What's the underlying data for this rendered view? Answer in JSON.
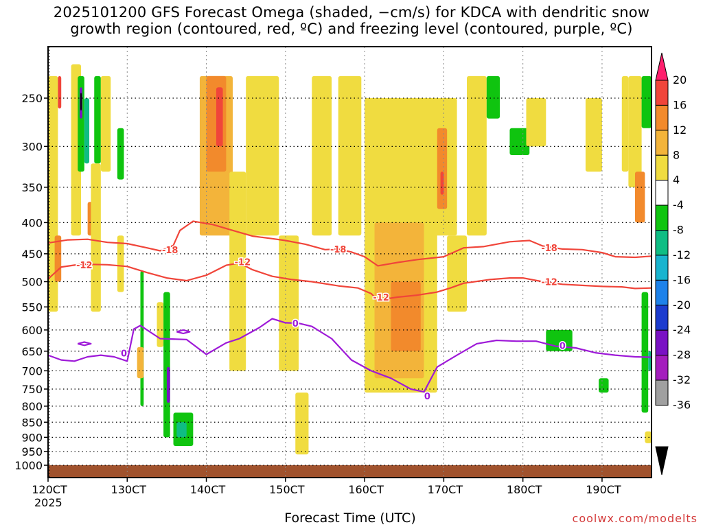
{
  "title": {
    "line1": "2025101200 GFS Forecast Omega (shaded, −cm/s) for KDCA with dendritic snow",
    "line2": "growth region (contoured, red, ºC) and freezing level (contoured, purple, ºC)"
  },
  "xlabel": "Forecast Time (UTC)",
  "watermark": "coolwx.com/modelts",
  "chart_data": {
    "type": "heatmap",
    "title": "2025101200 GFS Forecast Omega (shaded, −cm/s) for KDCA with dendritic snow growth region (contoured, red, ºC) and freezing level (contoured, purple, ºC)",
    "xlabel": "Forecast Time (UTC)",
    "ylabel": "",
    "x_unit_note": "hours since 12 Oct 2025 00 UTC",
    "xlim": [
      0,
      183
    ],
    "ylim": [
      1000,
      200
    ],
    "x_ticks": [
      {
        "x": 0,
        "label": "120CT",
        "sub": "2025"
      },
      {
        "x": 24,
        "label": "130CT"
      },
      {
        "x": 48,
        "label": "140CT"
      },
      {
        "x": 72,
        "label": "150CT"
      },
      {
        "x": 96,
        "label": "160CT"
      },
      {
        "x": 120,
        "label": "170CT"
      },
      {
        "x": 144,
        "label": "180CT"
      },
      {
        "x": 168,
        "label": "190CT"
      }
    ],
    "y_ticks": [
      250,
      300,
      350,
      400,
      450,
      500,
      550,
      600,
      650,
      700,
      750,
      800,
      850,
      900,
      950,
      1000
    ],
    "colorbar": {
      "labels": [
        "20",
        "16",
        "12",
        "8",
        "4",
        "-4",
        "-8",
        "-12",
        "-16",
        "-20",
        "-24",
        "-28",
        "-32",
        "-36"
      ],
      "colors": [
        "#ff1f6d",
        "#f0453a",
        "#f28a2c",
        "#f3b43a",
        "#f0dc40",
        "#ffffff",
        "#0fc40f",
        "#0fbd84",
        "#19b4cf",
        "#1e82ea",
        "#1c3ccf",
        "#7a12c4",
        "#a41ebd",
        "#a0a0a0",
        "#000000"
      ]
    },
    "ground": {
      "color": "#a0522d"
    },
    "series": [
      {
        "name": "-18",
        "color": "#f0453a",
        "points": [
          [
            0,
            432
          ],
          [
            6,
            427
          ],
          [
            12,
            426
          ],
          [
            18,
            431
          ],
          [
            24,
            433
          ],
          [
            30,
            440
          ],
          [
            34,
            445
          ],
          [
            38,
            436
          ],
          [
            40,
            412
          ],
          [
            44,
            398
          ],
          [
            50,
            403
          ],
          [
            56,
            412
          ],
          [
            62,
            421
          ],
          [
            68,
            425
          ],
          [
            72,
            428
          ],
          [
            78,
            434
          ],
          [
            84,
            443
          ],
          [
            88,
            442
          ],
          [
            92,
            447
          ],
          [
            96,
            455
          ],
          [
            100,
            471
          ],
          [
            106,
            465
          ],
          [
            112,
            460
          ],
          [
            120,
            455
          ],
          [
            126,
            440
          ],
          [
            132,
            438
          ],
          [
            140,
            430
          ],
          [
            146,
            428
          ],
          [
            150,
            437
          ],
          [
            156,
            442
          ],
          [
            162,
            443
          ],
          [
            168,
            448
          ],
          [
            172,
            455
          ],
          [
            178,
            456
          ],
          [
            183,
            454
          ]
        ],
        "labels": [
          [
            37,
            443
          ],
          [
            88,
            442
          ],
          [
            152,
            440
          ]
        ]
      },
      {
        "name": "-12",
        "color": "#f0453a",
        "points": [
          [
            0,
            495
          ],
          [
            4,
            473
          ],
          [
            10,
            468
          ],
          [
            18,
            469
          ],
          [
            24,
            472
          ],
          [
            30,
            483
          ],
          [
            36,
            493
          ],
          [
            42,
            498
          ],
          [
            48,
            488
          ],
          [
            54,
            470
          ],
          [
            58,
            466
          ],
          [
            62,
            478
          ],
          [
            68,
            490
          ],
          [
            74,
            496
          ],
          [
            80,
            500
          ],
          [
            88,
            508
          ],
          [
            94,
            512
          ],
          [
            98,
            523
          ],
          [
            100,
            536
          ],
          [
            106,
            530
          ],
          [
            112,
            526
          ],
          [
            118,
            520
          ],
          [
            122,
            512
          ],
          [
            126,
            503
          ],
          [
            134,
            496
          ],
          [
            140,
            493
          ],
          [
            144,
            493
          ],
          [
            150,
            500
          ],
          [
            156,
            505
          ],
          [
            162,
            507
          ],
          [
            168,
            509
          ],
          [
            174,
            510
          ],
          [
            178,
            513
          ],
          [
            183,
            512
          ]
        ],
        "labels": [
          [
            11,
            469
          ],
          [
            59,
            464
          ],
          [
            101,
            530
          ],
          [
            152,
            500
          ]
        ]
      },
      {
        "name": "0",
        "color": "#9e1ad8",
        "points": [
          [
            0,
            660
          ],
          [
            4,
            672
          ],
          [
            8,
            675
          ],
          [
            12,
            664
          ],
          [
            16,
            660
          ],
          [
            20,
            664
          ],
          [
            24,
            675
          ],
          [
            26,
            598
          ],
          [
            28,
            590
          ],
          [
            34,
            620
          ],
          [
            42,
            622
          ],
          [
            48,
            658
          ],
          [
            54,
            630
          ],
          [
            58,
            620
          ],
          [
            64,
            595
          ],
          [
            68,
            575
          ],
          [
            72,
            584
          ],
          [
            76,
            585
          ],
          [
            80,
            592
          ],
          [
            86,
            620
          ],
          [
            92,
            672
          ],
          [
            98,
            700
          ],
          [
            104,
            720
          ],
          [
            110,
            750
          ],
          [
            114,
            758
          ],
          [
            118,
            690
          ],
          [
            124,
            660
          ],
          [
            130,
            632
          ],
          [
            136,
            624
          ],
          [
            142,
            626
          ],
          [
            148,
            626
          ],
          [
            154,
            638
          ],
          [
            160,
            642
          ],
          [
            166,
            654
          ],
          [
            172,
            660
          ],
          [
            178,
            664
          ],
          [
            183,
            665
          ]
        ],
        "labels": [
          [
            23,
            655
          ],
          [
            75,
            585
          ],
          [
            115,
            770
          ],
          [
            156,
            636
          ]
        ]
      },
      {
        "name": "0 (small closed contour)",
        "color": "#9e1ad8",
        "points": [
          [
            39,
            604
          ],
          [
            41,
            600
          ],
          [
            43,
            604
          ],
          [
            41,
            608
          ],
          [
            39,
            604
          ]
        ],
        "labels": []
      },
      {
        "name": "0 (small closed contour)",
        "color": "#9e1ad8",
        "points": [
          [
            9,
            632
          ],
          [
            11,
            628
          ],
          [
            13,
            632
          ],
          [
            11,
            636
          ],
          [
            9,
            632
          ]
        ],
        "labels": []
      }
    ],
    "omega_cells": [
      {
        "x0": 0,
        "x1": 3,
        "p0": 230,
        "p1": 560,
        "v": 6
      },
      {
        "x0": 2,
        "x1": 4,
        "p0": 420,
        "p1": 500,
        "v": 14
      },
      {
        "x0": 3,
        "x1": 4,
        "p0": 230,
        "p1": 260,
        "v": 18
      },
      {
        "x0": 7,
        "x1": 10,
        "p0": 220,
        "p1": 420,
        "v": 6
      },
      {
        "x0": 9,
        "x1": 11,
        "p0": 230,
        "p1": 330,
        "v": -8
      },
      {
        "x0": 9.6,
        "x1": 10.4,
        "p0": 240,
        "p1": 270,
        "v": -30
      },
      {
        "x0": 9.8,
        "x1": 10.2,
        "p0": 245,
        "p1": 262,
        "v": -36
      },
      {
        "x0": 11,
        "x1": 12.5,
        "p0": 250,
        "p1": 320,
        "v": -14
      },
      {
        "x0": 12,
        "x1": 14,
        "p0": 370,
        "p1": 420,
        "v": 12
      },
      {
        "x0": 14,
        "x1": 16,
        "p0": 230,
        "p1": 320,
        "v": -10
      },
      {
        "x0": 13,
        "x1": 16,
        "p0": 320,
        "p1": 560,
        "v": 6
      },
      {
        "x0": 16,
        "x1": 19,
        "p0": 230,
        "p1": 330,
        "v": 6
      },
      {
        "x0": 21,
        "x1": 23,
        "p0": 280,
        "p1": 340,
        "v": -8
      },
      {
        "x0": 21,
        "x1": 23,
        "p0": 420,
        "p1": 520,
        "v": 6
      },
      {
        "x0": 28,
        "x1": 29,
        "p0": 480,
        "p1": 800,
        "v": -8
      },
      {
        "x0": 27,
        "x1": 29,
        "p0": 640,
        "p1": 720,
        "v": 10
      },
      {
        "x0": 33,
        "x1": 35,
        "p0": 540,
        "p1": 640,
        "v": 6
      },
      {
        "x0": 35,
        "x1": 37,
        "p0": 520,
        "p1": 900,
        "v": -8
      },
      {
        "x0": 36,
        "x1": 37,
        "p0": 690,
        "p1": 790,
        "v": -28
      },
      {
        "x0": 38,
        "x1": 44,
        "p0": 820,
        "p1": 930,
        "v": -8
      },
      {
        "x0": 39,
        "x1": 42,
        "p0": 850,
        "p1": 900,
        "v": -14
      },
      {
        "x0": 46,
        "x1": 56,
        "p0": 230,
        "p1": 420,
        "v": 8
      },
      {
        "x0": 48,
        "x1": 54,
        "p0": 230,
        "p1": 330,
        "v": 12
      },
      {
        "x0": 51,
        "x1": 53,
        "p0": 240,
        "p1": 300,
        "v": 18
      },
      {
        "x0": 55,
        "x1": 60,
        "p0": 330,
        "p1": 700,
        "v": 6
      },
      {
        "x0": 60,
        "x1": 70,
        "p0": 230,
        "p1": 420,
        "v": 6
      },
      {
        "x0": 70,
        "x1": 76,
        "p0": 420,
        "p1": 700,
        "v": 6
      },
      {
        "x0": 75,
        "x1": 79,
        "p0": 760,
        "p1": 960,
        "v": 6
      },
      {
        "x0": 80,
        "x1": 86,
        "p0": 230,
        "p1": 420,
        "v": 6
      },
      {
        "x0": 88,
        "x1": 95,
        "p0": 230,
        "p1": 420,
        "v": 6
      },
      {
        "x0": 96,
        "x1": 118,
        "p0": 250,
        "p1": 760,
        "v": 6
      },
      {
        "x0": 99,
        "x1": 114,
        "p0": 400,
        "p1": 720,
        "v": 10
      },
      {
        "x0": 104,
        "x1": 113,
        "p0": 500,
        "p1": 650,
        "v": 12
      },
      {
        "x0": 115,
        "x1": 124,
        "p0": 250,
        "p1": 420,
        "v": 6
      },
      {
        "x0": 118,
        "x1": 121,
        "p0": 280,
        "p1": 380,
        "v": 12
      },
      {
        "x0": 119,
        "x1": 120,
        "p0": 330,
        "p1": 360,
        "v": 18
      },
      {
        "x0": 121,
        "x1": 127,
        "p0": 420,
        "p1": 560,
        "v": 6
      },
      {
        "x0": 127,
        "x1": 133,
        "p0": 230,
        "p1": 420,
        "v": 6
      },
      {
        "x0": 133,
        "x1": 137,
        "p0": 230,
        "p1": 270,
        "v": -8
      },
      {
        "x0": 140,
        "x1": 146,
        "p0": 280,
        "p1": 310,
        "v": -8
      },
      {
        "x0": 145,
        "x1": 151,
        "p0": 250,
        "p1": 300,
        "v": 6
      },
      {
        "x0": 151,
        "x1": 159,
        "p0": 600,
        "p1": 650,
        "v": -8
      },
      {
        "x0": 163,
        "x1": 168,
        "p0": 250,
        "p1": 330,
        "v": 6
      },
      {
        "x0": 167,
        "x1": 170,
        "p0": 720,
        "p1": 760,
        "v": -8
      },
      {
        "x0": 174,
        "x1": 176,
        "p0": 230,
        "p1": 330,
        "v": 6
      },
      {
        "x0": 176,
        "x1": 180,
        "p0": 230,
        "p1": 350,
        "v": 6
      },
      {
        "x0": 178,
        "x1": 181,
        "p0": 330,
        "p1": 400,
        "v": 12
      },
      {
        "x0": 180,
        "x1": 183,
        "p0": 230,
        "p1": 280,
        "v": -10
      },
      {
        "x0": 180,
        "x1": 182,
        "p0": 520,
        "p1": 820,
        "v": -8
      },
      {
        "x0": 182,
        "x1": 183,
        "p0": 650,
        "p1": 700,
        "v": -14
      },
      {
        "x0": 181,
        "x1": 183,
        "p0": 880,
        "p1": 920,
        "v": 6
      }
    ]
  }
}
